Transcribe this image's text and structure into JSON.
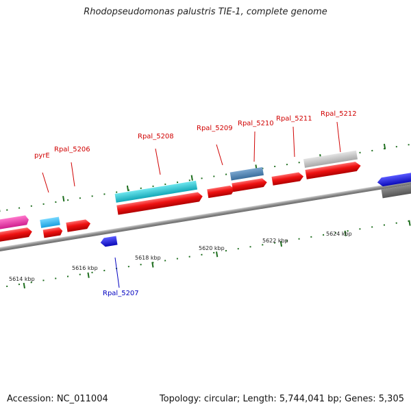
{
  "title": "Rhodopseudomonas palustris TIE-1, complete genome",
  "footer": {
    "accession": "Accession: NC_011004",
    "meta": "Topology: circular; Length: 5,744,041 bp; Genes: 5,305"
  },
  "ticks": [
    "5614 kbp",
    "5616 kbp",
    "5618 kbp",
    "5620 kbp",
    "5622 kbp",
    "5624 kbp"
  ],
  "gene_labels": [
    {
      "text": "pyrE",
      "color": "#d00000"
    },
    {
      "text": "Rpal_5206",
      "color": "#d00000"
    },
    {
      "text": "Rpal_5208",
      "color": "#d00000"
    },
    {
      "text": "Rpal_5209",
      "color": "#d00000"
    },
    {
      "text": "Rpal_5210",
      "color": "#d00000"
    },
    {
      "text": "Rpal_5211",
      "color": "#d00000"
    },
    {
      "text": "Rpal_5212",
      "color": "#d00000"
    },
    {
      "text": "Rpal_5207",
      "color": "#0000c0"
    }
  ],
  "colors": {
    "forward_gene": "#ee1111",
    "reverse_gene": "#1a1ae0",
    "backbone": "#888888",
    "tick_mark": "#1e6e1e"
  }
}
